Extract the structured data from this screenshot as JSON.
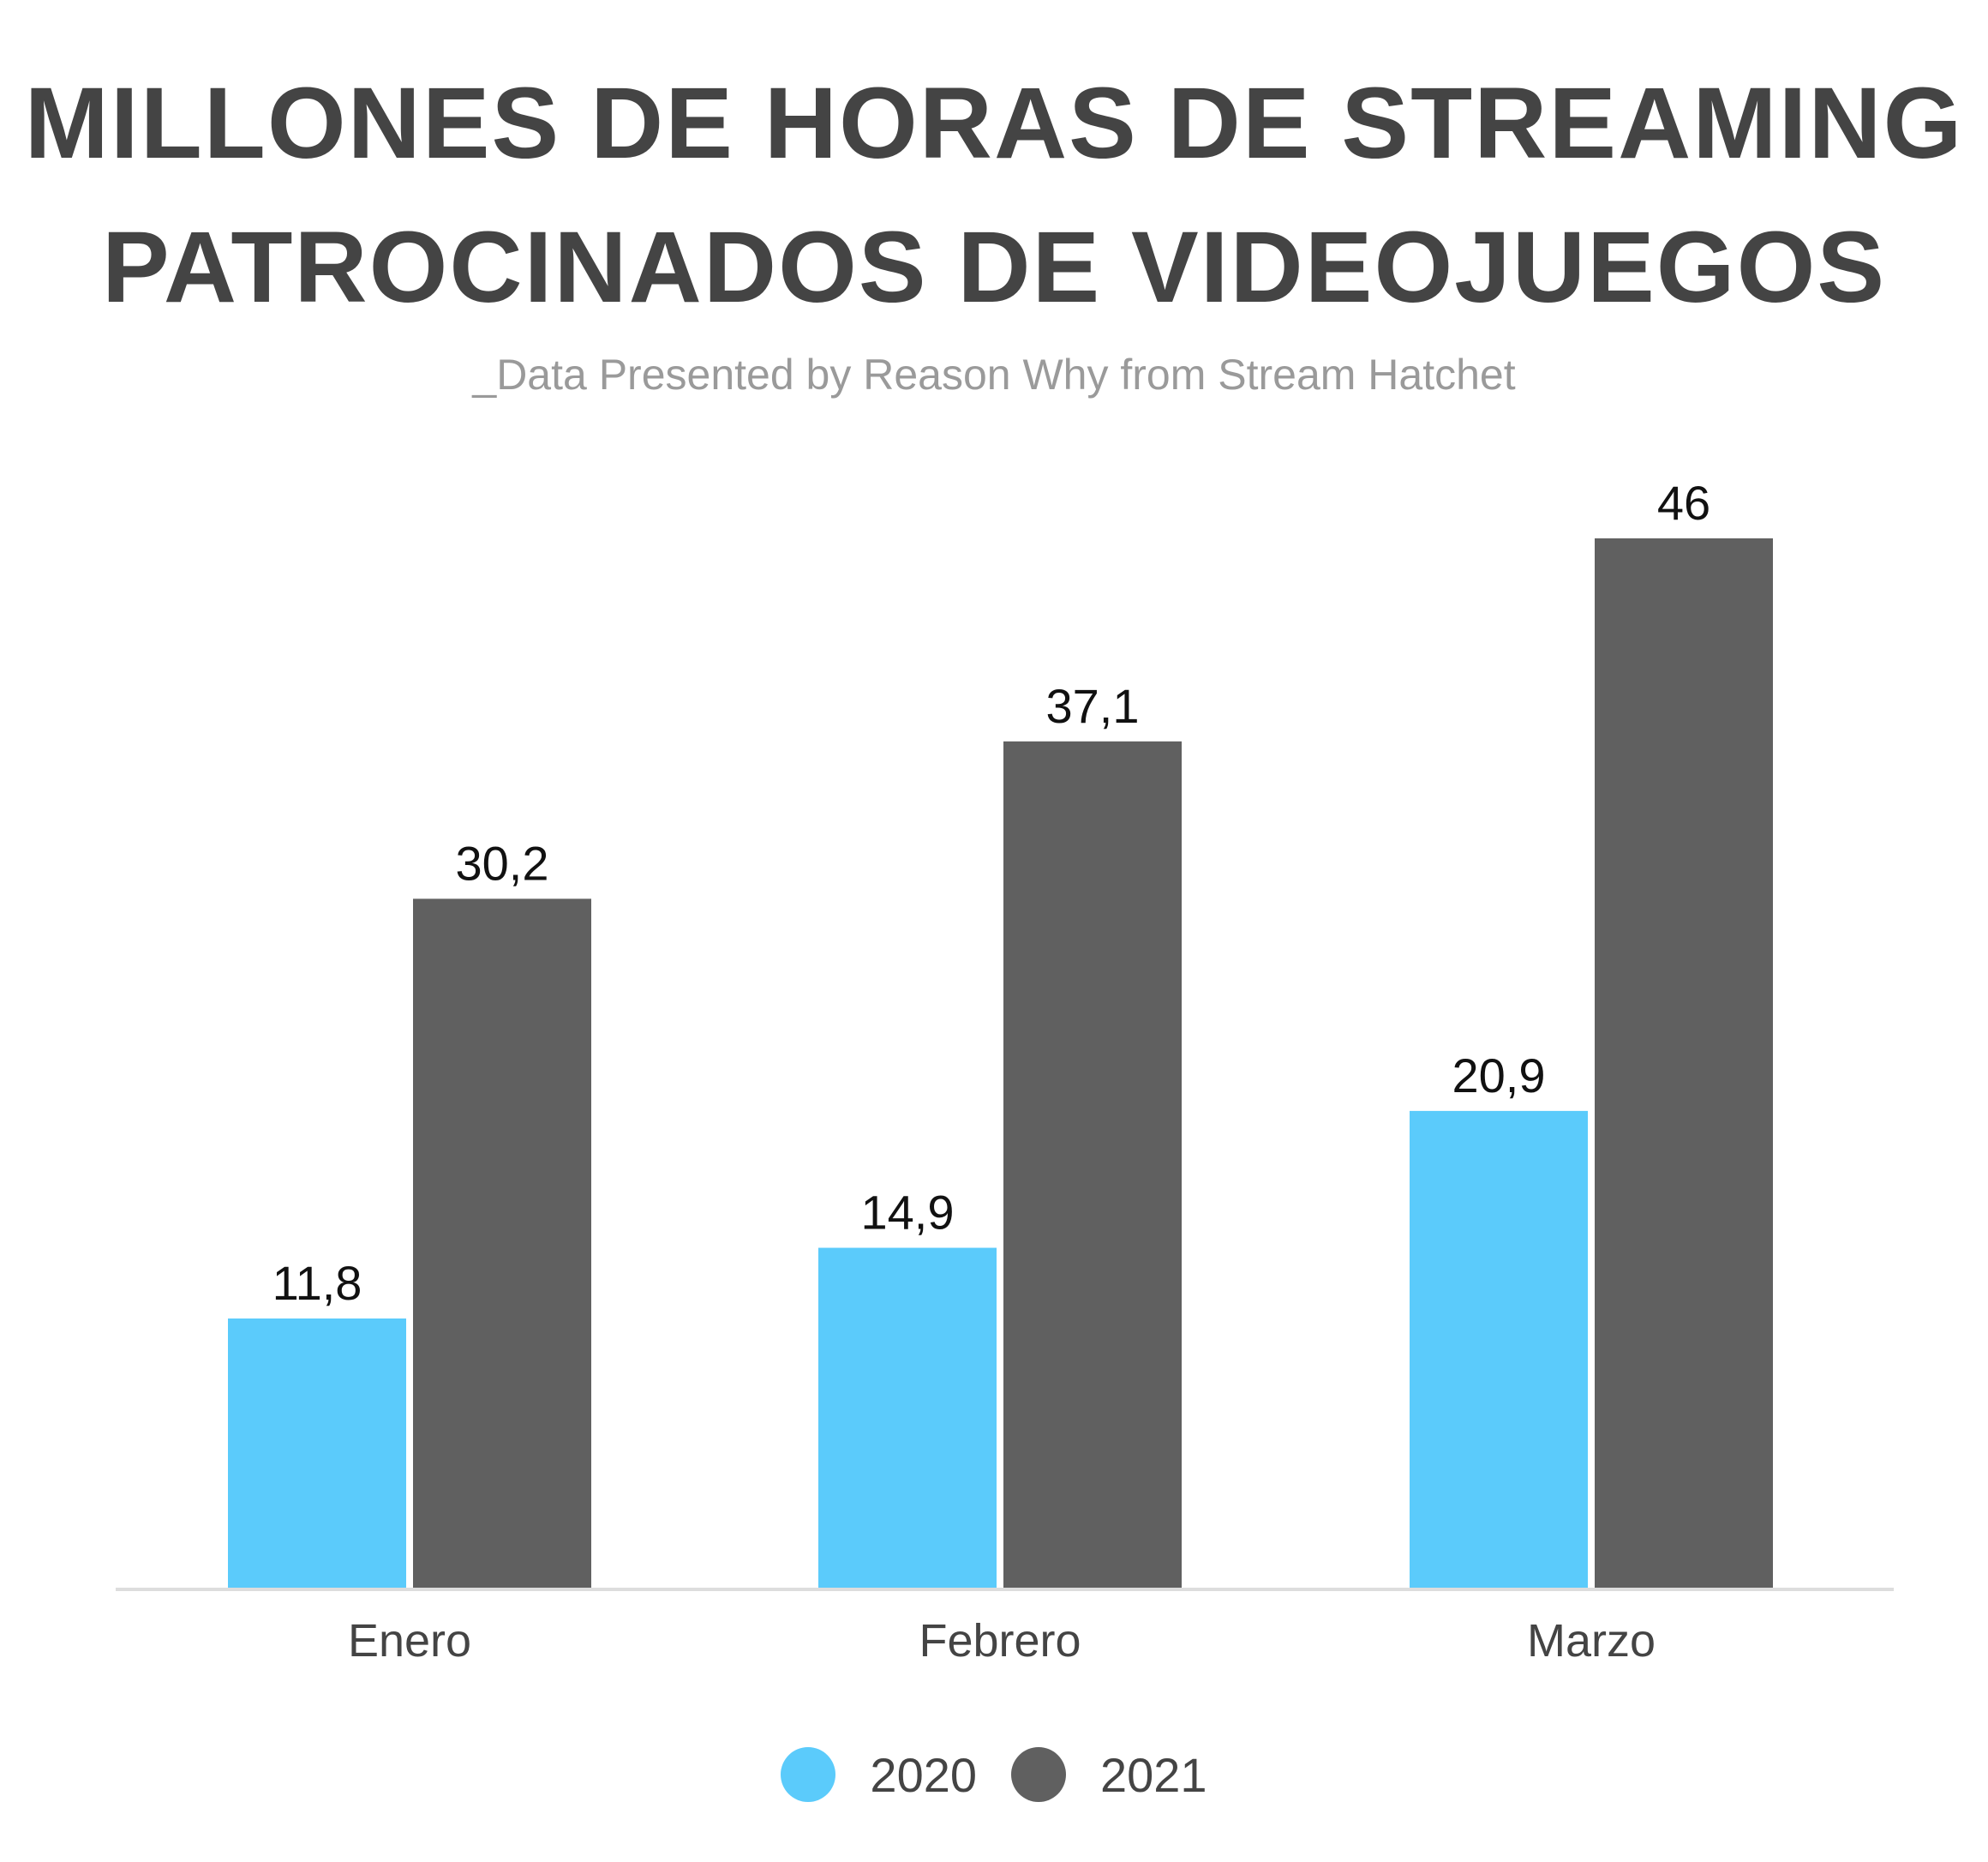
{
  "colors": {
    "series_2020": "#5bcbfb",
    "series_2021": "#606060",
    "axis": "#dddddd",
    "title": "#444444",
    "subtitle": "#9a9a9a"
  },
  "chart_data": {
    "type": "bar",
    "title": "MILLONES DE HORAS DE STREAMING PATROCINADOS DE VIDEOJUEGOS",
    "title_lines": [
      "MILLONES DE HORAS DE STREAMING",
      "PATROCINADOS DE VIDEOJUEGOS"
    ],
    "subtitle": "_Data Presented by Reason Why from Stream Hatchet",
    "xlabel": "",
    "ylabel": "",
    "ylim": [
      0,
      46
    ],
    "grid": false,
    "legend_position": "bottom-center",
    "categories": [
      "Enero",
      "Febrero",
      "Marzo"
    ],
    "series": [
      {
        "name": "2020",
        "values": [
          11.8,
          14.9,
          20.9
        ],
        "labels": [
          "11,8",
          "14,9",
          "20,9"
        ]
      },
      {
        "name": "2021",
        "values": [
          30.2,
          37.1,
          46
        ],
        "labels": [
          "30,2",
          "37,1",
          "46"
        ]
      }
    ]
  }
}
